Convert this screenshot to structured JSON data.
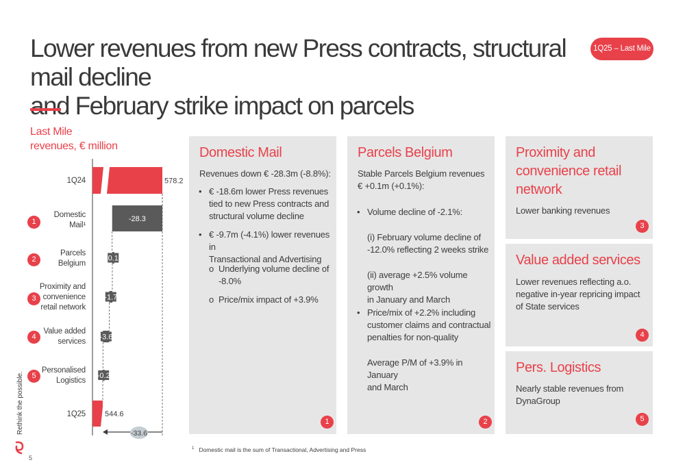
{
  "header": {
    "title_line1": "Lower revenues from new Press contracts, structural mail decline",
    "title_line2": "and February strike impact on parcels",
    "badge": "1Q25 – Last Mile"
  },
  "chart": {
    "title_line1": "Last Mile",
    "title_line2": "revenues, € million"
  },
  "chart_data": {
    "type": "bar",
    "subtype": "waterfall",
    "categories": [
      "1Q24",
      "Domestic Mail¹",
      "Parcels Belgium",
      "Proximity and convenience retail network",
      "Value added services",
      "Personalised Logistics",
      "1Q25"
    ],
    "values": [
      578.2,
      -28.3,
      0.1,
      -1.7,
      -3.6,
      -0.2,
      544.6
    ],
    "value_labels": [
      "578.2",
      "-28.3",
      "0.1",
      "-1.7",
      "-3.6",
      "-0.2",
      "544.6"
    ],
    "total_change_label": "-33.6",
    "axis_break": true,
    "colors": {
      "total": "#e8414a",
      "delta": "#5a5a5a"
    }
  },
  "chart_rows": [
    {
      "num": "",
      "label_lines": [
        "1Q24"
      ]
    },
    {
      "num": "1",
      "label_lines": [
        "Domestic",
        "Mail¹"
      ]
    },
    {
      "num": "2",
      "label_lines": [
        "Parcels",
        "Belgium"
      ]
    },
    {
      "num": "3",
      "label_lines": [
        "Proximity and",
        "convenience",
        "retail network"
      ]
    },
    {
      "num": "4",
      "label_lines": [
        "Value added",
        "services"
      ]
    },
    {
      "num": "5",
      "label_lines": [
        "Personalised",
        "Logistics"
      ]
    },
    {
      "num": "",
      "label_lines": [
        "1Q25"
      ]
    }
  ],
  "panels": {
    "domestic": {
      "title": "Domestic Mail",
      "intro": "Revenues down € -28.3m (-8.8%):",
      "bullet1": [
        "€ -18.6m lower Press revenues",
        "tied to new Press contracts and",
        "structural volume decline"
      ],
      "bullet2": [
        "€ -9.7m (-4.1%) lower revenues in",
        "Transactional and Advertising"
      ],
      "sub1": [
        "Underlying volume decline of",
        "-8.0%"
      ],
      "sub2": [
        "Price/mix impact of +3.9%"
      ],
      "num": "1"
    },
    "parcels": {
      "title": "Parcels Belgium",
      "intro": [
        "Stable Parcels Belgium revenues",
        "€ +0.1m (+0.1%):"
      ],
      "bullet1": "Volume decline of -2.1%:",
      "sub1": [
        "(i) February volume decline of",
        "-12.0% reflecting 2 weeks strike"
      ],
      "sub2": [
        "(ii) average +2.5% volume growth",
        "in January and March"
      ],
      "bullet2": [
        "Price/mix of +2.2% including",
        "customer claims and contractual",
        "penalties for non-quality"
      ],
      "tail": [
        "Average P/M of +3.9% in January",
        "and March"
      ],
      "num": "2"
    },
    "proximity": {
      "title_lines": [
        "Proximity and",
        "convenience retail",
        "network"
      ],
      "text": "Lower banking revenues",
      "num": "3"
    },
    "vas": {
      "title": "Value added services",
      "text": [
        "Lower revenues reflecting a.o.",
        "negative in-year repricing impact",
        "of State services"
      ],
      "num": "4"
    },
    "perslog": {
      "title": "Pers. Logistics",
      "text": [
        "Nearly stable revenues from",
        "DynaGroup"
      ],
      "num": "5"
    }
  },
  "footer": {
    "footnote_mark": "1",
    "footnote": "Domestic mail is the sum of Transactional, Advertising and Press",
    "page": "5",
    "brand": "Rethink the possible."
  }
}
